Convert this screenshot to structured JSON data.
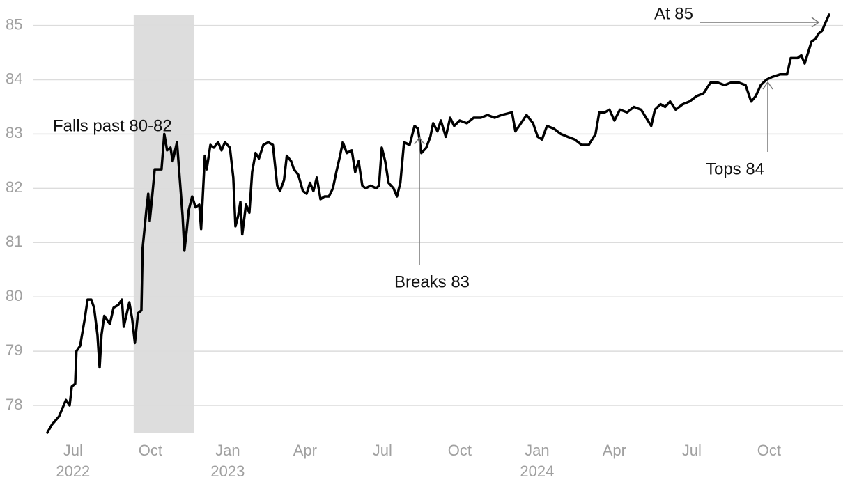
{
  "chart_data": {
    "type": "line",
    "annotations": [
      "Falls past 80-82",
      "Breaks 83",
      "Tops 84",
      "At 85"
    ],
    "color": "#000000",
    "shade_color": "#dddddd",
    "grid": true,
    "shaded_region": [
      2022.696,
      2022.892
    ],
    "xlim": [
      2022.354,
      2024.989
    ],
    "ylim": [
      77.5,
      85.2
    ],
    "yticks": [
      78,
      79,
      80,
      81,
      82,
      83,
      84,
      85
    ],
    "xticks": [
      {
        "value": 2022.5,
        "label": "Jul"
      },
      {
        "value": 2022.75,
        "label": "Oct"
      },
      {
        "value": 2023.0,
        "label": "Jan"
      },
      {
        "value": 2023.25,
        "label": "Apr"
      },
      {
        "value": 2023.5,
        "label": "Jul"
      },
      {
        "value": 2023.75,
        "label": "Oct"
      },
      {
        "value": 2024.0,
        "label": "Jan"
      },
      {
        "value": 2024.25,
        "label": "Apr"
      },
      {
        "value": 2024.5,
        "label": "Jul"
      },
      {
        "value": 2024.75,
        "label": "Oct"
      }
    ],
    "x_year_labels": [
      {
        "value": 2022.5,
        "label": "2022"
      },
      {
        "value": 2023.0,
        "label": "2023"
      },
      {
        "value": 2024.0,
        "label": "2024"
      }
    ],
    "x": [
      2022.417,
      2022.432,
      2022.455,
      2022.477,
      2022.489,
      2022.496,
      2022.507,
      2022.511,
      2022.523,
      2022.529,
      2022.538,
      2022.547,
      2022.559,
      2022.568,
      2022.579,
      2022.586,
      2022.592,
      2022.601,
      2022.619,
      2022.631,
      2022.646,
      2022.658,
      2022.664,
      2022.682,
      2022.691,
      2022.7,
      2022.71,
      2022.721,
      2022.725,
      2022.737,
      2022.743,
      2022.748,
      2022.755,
      2022.764,
      2022.786,
      2022.795,
      2022.804,
      2022.815,
      2022.822,
      2022.836,
      2022.842,
      2022.854,
      2022.86,
      2022.867,
      2022.874,
      2022.885,
      2022.896,
      2022.908,
      2022.914,
      2022.926,
      2022.932,
      2022.944,
      2022.955,
      2022.969,
      2022.98,
      2022.991,
      2023.007,
      2023.018,
      2023.025,
      2023.034,
      2023.041,
      2023.047,
      2023.059,
      2023.07,
      2023.079,
      2023.09,
      2023.101,
      2023.115,
      2023.131,
      2023.146,
      2023.16,
      2023.169,
      2023.182,
      2023.191,
      2023.205,
      2023.214,
      2023.228,
      2023.243,
      2023.255,
      2023.266,
      2023.277,
      2023.288,
      2023.3,
      2023.313,
      2023.327,
      2023.34,
      2023.351,
      2023.363,
      2023.372,
      2023.385,
      2023.401,
      2023.412,
      2023.423,
      2023.435,
      2023.446,
      2023.462,
      2023.48,
      2023.489,
      2023.498,
      2023.509,
      2023.52,
      2023.536,
      2023.547,
      2023.558,
      2023.57,
      2023.588,
      2023.604,
      2023.615,
      2023.626,
      2023.642,
      2023.655,
      2023.664,
      2023.678,
      2023.689,
      2023.705,
      2023.719,
      2023.732,
      2023.75,
      2023.773,
      2023.795,
      2023.818,
      2023.84,
      2023.863,
      2023.885,
      2023.919,
      2023.93,
      2023.948,
      2023.966,
      2023.987,
      2024.002,
      2024.016,
      2024.032,
      2024.054,
      2024.077,
      2024.099,
      2024.122,
      2024.144,
      2024.167,
      2024.178,
      2024.189,
      2024.201,
      2024.219,
      2024.234,
      2024.25,
      2024.268,
      2024.291,
      2024.313,
      2024.336,
      2024.358,
      2024.369,
      2024.381,
      2024.399,
      2024.414,
      2024.43,
      2024.448,
      2024.471,
      2024.493,
      2024.516,
      2024.538,
      2024.561,
      2024.583,
      2024.606,
      2024.628,
      2024.651,
      2024.674,
      2024.692,
      2024.707,
      2024.723,
      2024.741,
      2024.759,
      2024.786,
      2024.808,
      2024.82,
      2024.842,
      2024.854,
      2024.865,
      2024.876,
      2024.887,
      2024.899,
      2024.91,
      2024.921,
      2024.932,
      2024.944
    ],
    "values": [
      77.5,
      77.65,
      77.8,
      78.1,
      78.0,
      78.35,
      78.4,
      79.0,
      79.1,
      79.3,
      79.6,
      79.95,
      79.95,
      79.8,
      79.3,
      78.7,
      79.3,
      79.65,
      79.5,
      79.8,
      79.85,
      79.95,
      79.45,
      79.9,
      79.6,
      79.15,
      79.7,
      79.75,
      80.9,
      81.6,
      81.9,
      81.4,
      81.8,
      82.35,
      82.35,
      83.0,
      82.7,
      82.75,
      82.5,
      82.85,
      82.4,
      81.5,
      80.85,
      81.2,
      81.6,
      81.85,
      81.65,
      81.7,
      81.25,
      82.6,
      82.35,
      82.8,
      82.75,
      82.85,
      82.7,
      82.85,
      82.75,
      82.2,
      81.3,
      81.5,
      81.75,
      81.15,
      81.7,
      81.55,
      82.3,
      82.65,
      82.55,
      82.8,
      82.85,
      82.8,
      82.05,
      81.95,
      82.15,
      82.6,
      82.5,
      82.35,
      82.25,
      81.95,
      81.9,
      82.1,
      81.95,
      82.2,
      81.8,
      81.85,
      81.85,
      82.0,
      82.3,
      82.6,
      82.85,
      82.65,
      82.7,
      82.3,
      82.5,
      82.05,
      82.0,
      82.05,
      82.0,
      82.05,
      82.75,
      82.5,
      82.1,
      82.0,
      81.85,
      82.1,
      82.85,
      82.8,
      83.15,
      83.1,
      82.65,
      82.75,
      82.95,
      83.2,
      83.05,
      83.25,
      82.95,
      83.3,
      83.15,
      83.25,
      83.2,
      83.3,
      83.3,
      83.35,
      83.3,
      83.35,
      83.4,
      83.05,
      83.2,
      83.35,
      83.2,
      82.95,
      82.9,
      83.15,
      83.1,
      83.0,
      82.95,
      82.9,
      82.8,
      82.8,
      82.9,
      83.0,
      83.4,
      83.4,
      83.45,
      83.25,
      83.45,
      83.4,
      83.5,
      83.45,
      83.25,
      83.15,
      83.45,
      83.55,
      83.5,
      83.6,
      83.45,
      83.55,
      83.6,
      83.7,
      83.75,
      83.95,
      83.95,
      83.9,
      83.95,
      83.95,
      83.9,
      83.6,
      83.7,
      83.9,
      84.0,
      84.05,
      84.1,
      84.1,
      84.4,
      84.4,
      84.45,
      84.3,
      84.5,
      84.7,
      84.75,
      84.85,
      84.9,
      85.05,
      85.2
    ]
  }
}
